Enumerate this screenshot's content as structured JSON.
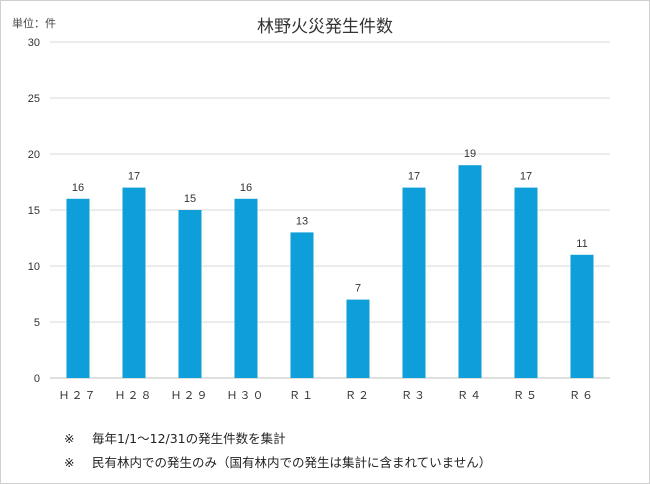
{
  "chart_data": {
    "type": "bar",
    "title": "林野火災発生件数",
    "unit_label": "単位：件",
    "categories": [
      "Ｈ２７",
      "Ｈ２８",
      "Ｈ２９",
      "Ｈ３０",
      "Ｒ１",
      "Ｒ２",
      "Ｒ３",
      "Ｒ４",
      "Ｒ５",
      "Ｒ６"
    ],
    "values": [
      16,
      17,
      15,
      16,
      13,
      7,
      17,
      19,
      17,
      11
    ],
    "ylim": [
      0,
      30
    ],
    "yticks": [
      0,
      5,
      10,
      15,
      20,
      25,
      30
    ],
    "grid": true,
    "data_labels": true,
    "bar_color": "#0E9FDA"
  },
  "notes": [
    {
      "mark": "※",
      "text": "毎年1/1～12/31の発生件数を集計"
    },
    {
      "mark": "※",
      "text": "民有林内での発生のみ（国有林内での発生は集計に含まれていません）"
    }
  ]
}
